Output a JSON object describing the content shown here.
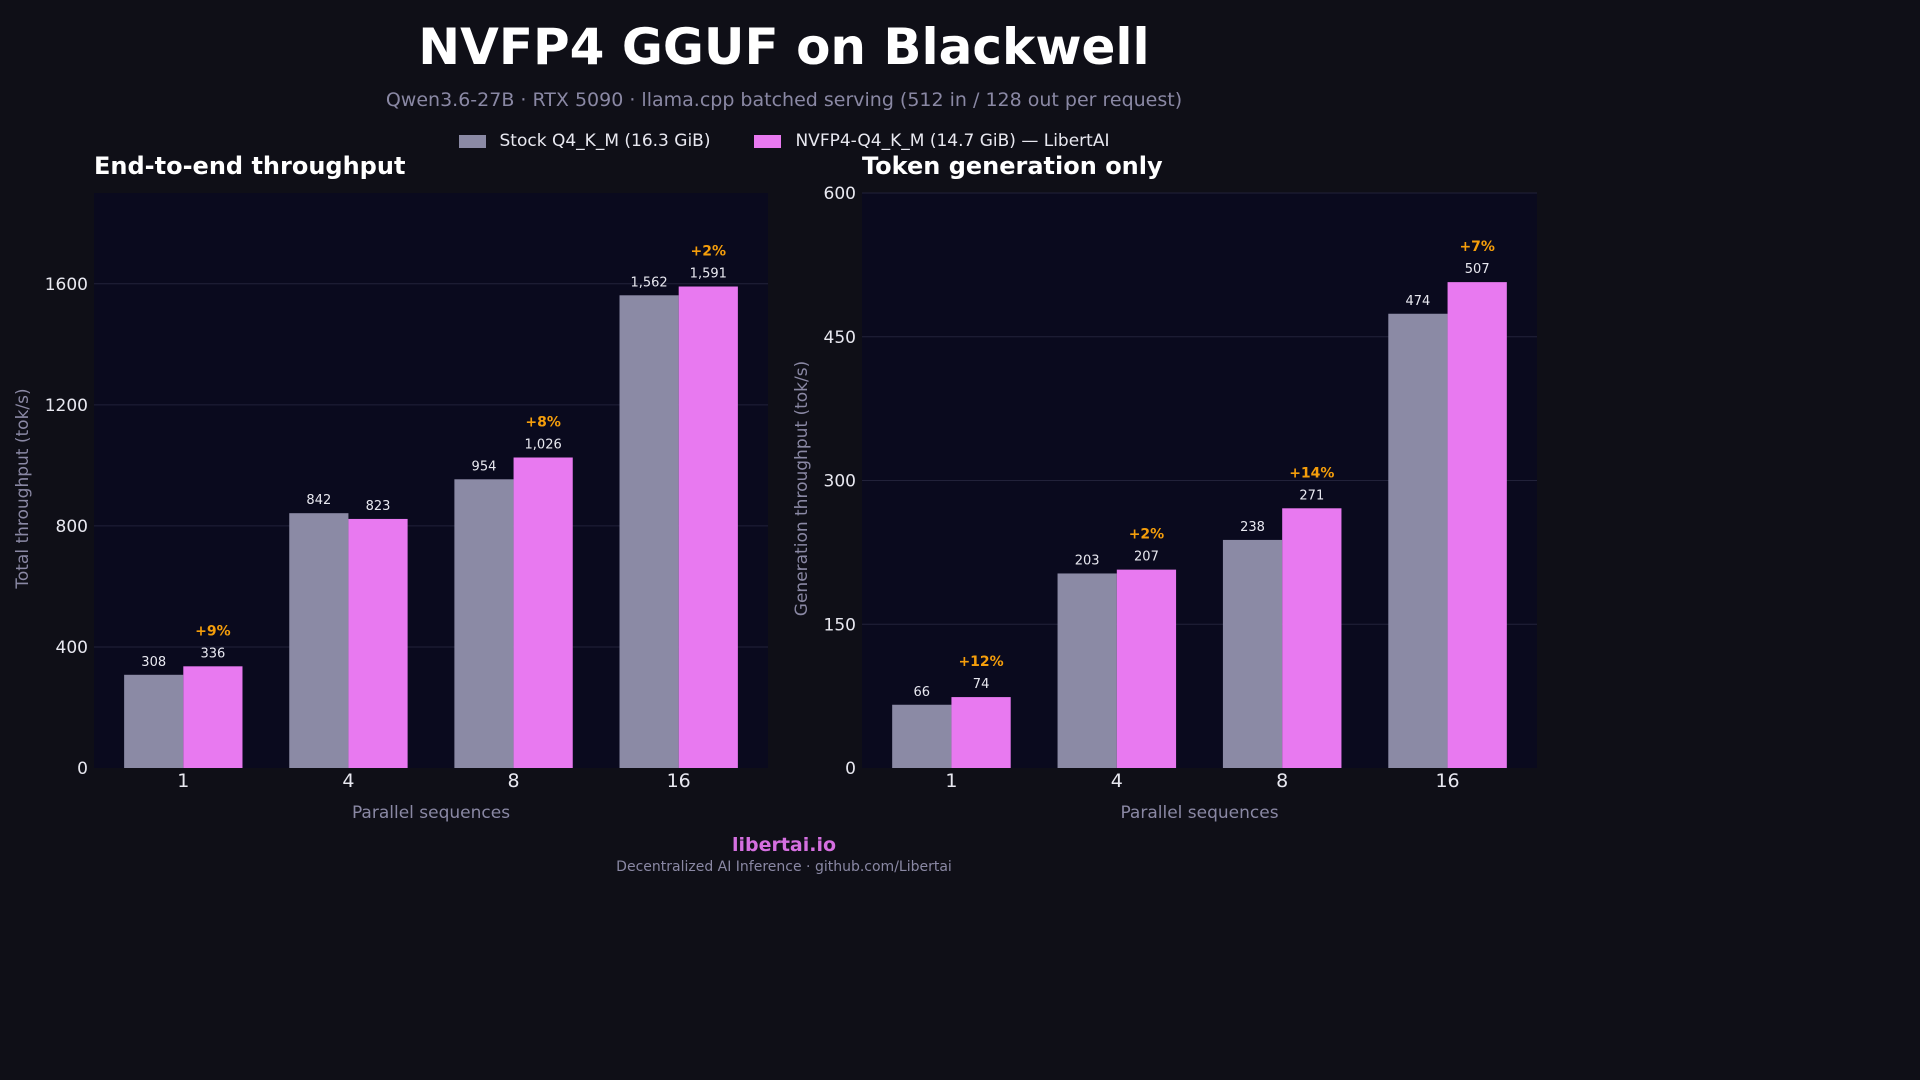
{
  "title": "NVFP4 GGUF on Blackwell",
  "subtitle": "Qwen3.6-27B  ·  RTX 5090  ·  llama.cpp batched serving (512 in / 128 out per request)",
  "legend": [
    {
      "label": "Stock Q4_K_M (16.3 GiB)",
      "color": "#8b8aa5"
    },
    {
      "label": "NVFP4-Q4_K_M (14.7 GiB) — LibertAI",
      "color": "#e879f0"
    }
  ],
  "brand": "libertai.io",
  "footer": "Decentralized AI Inference  ·  github.com/Libertai",
  "colors": {
    "background": "#0f0f17",
    "plot_bg": "#0a0a1e",
    "gain": "#f59e0b",
    "grid": "#22223a"
  },
  "chart_data": [
    {
      "type": "bar",
      "title": "End-to-end throughput",
      "xlabel": "Parallel sequences",
      "ylabel": "Total throughput (tok/s)",
      "categories": [
        "1",
        "4",
        "8",
        "16"
      ],
      "ylim": [
        0,
        1900
      ],
      "yticks": [
        0,
        400,
        800,
        1200,
        1600
      ],
      "grid": true,
      "series": [
        {
          "name": "Stock Q4_K_M (16.3 GiB)",
          "values": [
            308,
            842,
            954,
            1562
          ],
          "labels": [
            "308",
            "842",
            "954",
            "1,562"
          ]
        },
        {
          "name": "NVFP4-Q4_K_M (14.7 GiB) — LibertAI",
          "values": [
            336,
            823,
            1026,
            1591
          ],
          "labels": [
            "336",
            "823",
            "1,026",
            "1,591"
          ]
        }
      ],
      "annotations": [
        "+9%",
        "",
        "+8%",
        "+2%"
      ]
    },
    {
      "type": "bar",
      "title": "Token generation only",
      "xlabel": "Parallel sequences",
      "ylabel": "Generation throughput (tok/s)",
      "categories": [
        "1",
        "4",
        "8",
        "16"
      ],
      "ylim": [
        0,
        600
      ],
      "yticks": [
        0,
        150,
        300,
        450,
        600
      ],
      "grid": true,
      "series": [
        {
          "name": "Stock Q4_K_M (16.3 GiB)",
          "values": [
            66,
            203,
            238,
            474
          ],
          "labels": [
            "66",
            "203",
            "238",
            "474"
          ]
        },
        {
          "name": "NVFP4-Q4_K_M (14.7 GiB) — LibertAI",
          "values": [
            74,
            207,
            271,
            507
          ],
          "labels": [
            "74",
            "207",
            "271",
            "507"
          ]
        }
      ],
      "annotations": [
        "+12%",
        "+2%",
        "+14%",
        "+7%"
      ]
    }
  ]
}
